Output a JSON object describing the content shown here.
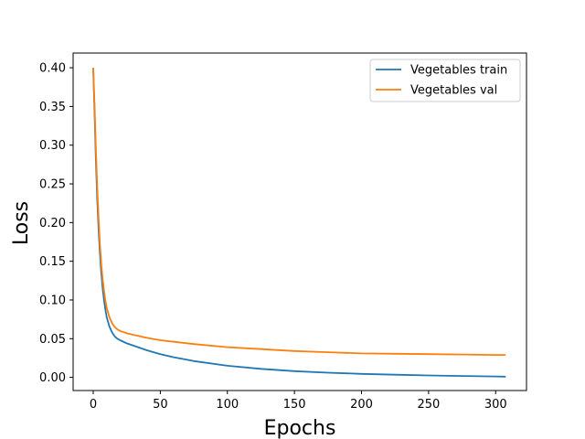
{
  "chart_data": {
    "type": "line",
    "title": "",
    "xlabel": "Epochs",
    "ylabel": "Loss",
    "xlim": [
      -15,
      323
    ],
    "ylim": [
      -0.017,
      0.419
    ],
    "xticks": [
      0,
      50,
      100,
      150,
      200,
      250,
      300
    ],
    "yticks": [
      0.0,
      0.05,
      0.1,
      0.15,
      0.2,
      0.25,
      0.3,
      0.35,
      0.4
    ],
    "xtick_labels": [
      "0",
      "50",
      "100",
      "150",
      "200",
      "250",
      "300"
    ],
    "ytick_labels": [
      "0.00",
      "0.05",
      "0.10",
      "0.15",
      "0.20",
      "0.25",
      "0.30",
      "0.35",
      "0.40"
    ],
    "grid": false,
    "legend_position": "top-right",
    "series": [
      {
        "name": "Vegetables train",
        "color": "#1f77b4",
        "x": [
          0,
          1,
          2,
          3,
          4,
          5,
          6,
          7,
          8,
          9,
          10,
          12,
          14,
          16,
          18,
          20,
          25,
          30,
          40,
          50,
          60,
          75,
          100,
          125,
          150,
          175,
          200,
          225,
          250,
          275,
          300,
          307
        ],
        "y": [
          0.399,
          0.34,
          0.28,
          0.23,
          0.19,
          0.16,
          0.135,
          0.115,
          0.1,
          0.088,
          0.078,
          0.066,
          0.058,
          0.053,
          0.05,
          0.048,
          0.044,
          0.041,
          0.035,
          0.03,
          0.026,
          0.021,
          0.015,
          0.011,
          0.008,
          0.006,
          0.0045,
          0.0035,
          0.0025,
          0.0018,
          0.0012,
          0.001
        ]
      },
      {
        "name": "Vegetables val",
        "color": "#ff7f0e",
        "x": [
          0,
          1,
          2,
          3,
          4,
          5,
          6,
          7,
          8,
          9,
          10,
          12,
          14,
          16,
          18,
          20,
          25,
          30,
          40,
          50,
          60,
          75,
          100,
          125,
          150,
          175,
          200,
          225,
          250,
          275,
          300,
          307
        ],
        "y": [
          0.399,
          0.35,
          0.295,
          0.245,
          0.205,
          0.172,
          0.147,
          0.127,
          0.112,
          0.1,
          0.09,
          0.078,
          0.07,
          0.065,
          0.062,
          0.06,
          0.057,
          0.055,
          0.051,
          0.048,
          0.046,
          0.043,
          0.039,
          0.0365,
          0.034,
          0.0325,
          0.031,
          0.0305,
          0.03,
          0.0295,
          0.029,
          0.029
        ]
      }
    ]
  }
}
